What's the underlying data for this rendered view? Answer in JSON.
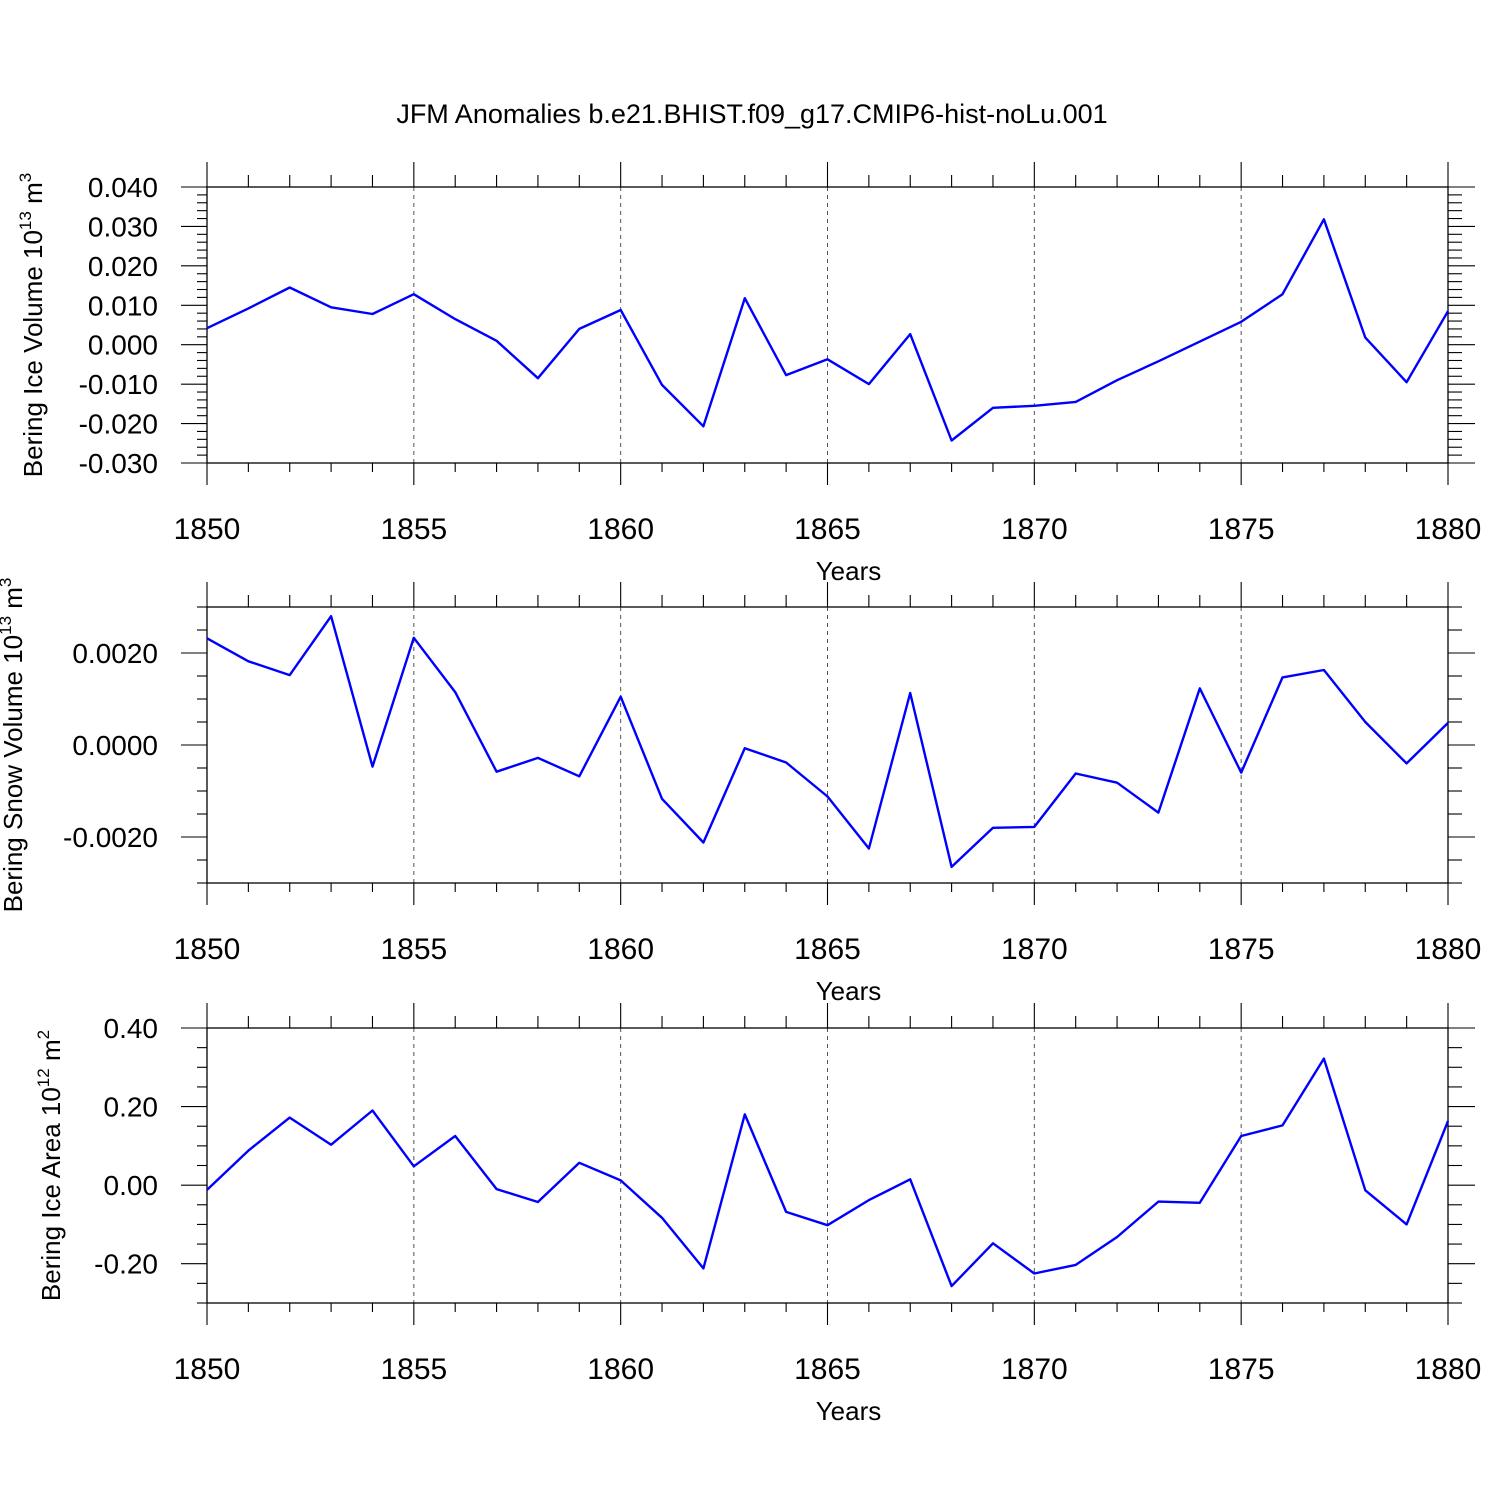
{
  "figure": {
    "title": "JFM Anomalies b.e21.BHIST.f09_g17.CMIP6-hist-noLu.001"
  },
  "colors": {
    "line": "#0000ff",
    "axis": "#000000",
    "grid": "#555555"
  },
  "chart_data": [
    {
      "type": "line",
      "ylabel_main": "Bering Ice Volume 10",
      "ylabel_sup": "13",
      "ylabel_unit": " m",
      "ylabel_unit_sup": "3",
      "xlabel": "Years",
      "xlim": [
        1850,
        1880
      ],
      "ylim": [
        -0.03,
        0.04
      ],
      "yticks": [
        -0.03,
        -0.02,
        -0.01,
        0.0,
        0.01,
        0.02,
        0.03,
        0.04
      ],
      "yticklabels": [
        "-0.030",
        "-0.020",
        "-0.010",
        "0.000",
        "0.010",
        "0.020",
        "0.030",
        "0.040"
      ],
      "yminor": 0.002,
      "xticks": [
        1850,
        1855,
        1860,
        1865,
        1870,
        1875,
        1880
      ],
      "xticklabels": [
        "1850",
        "1855",
        "1860",
        "1865",
        "1870",
        "1875",
        "1880"
      ],
      "grid": "vertical dashed at major x ticks",
      "series": [
        {
          "name": "Bering Ice Volume",
          "x": [
            1850,
            1851,
            1852,
            1853,
            1854,
            1855,
            1856,
            1857,
            1858,
            1859,
            1860,
            1861,
            1862,
            1863,
            1864,
            1865,
            1866,
            1867,
            1868,
            1869,
            1870,
            1871,
            1872,
            1873,
            1874,
            1875,
            1876,
            1877,
            1878,
            1879,
            1880
          ],
          "values": [
            0.0042,
            0.0092,
            0.0145,
            0.0095,
            0.0078,
            0.0128,
            0.0065,
            0.001,
            -0.0085,
            0.004,
            0.0088,
            -0.0102,
            -0.0207,
            0.0118,
            -0.0077,
            -0.0037,
            -0.01,
            0.0027,
            -0.0243,
            -0.016,
            -0.0155,
            -0.0145,
            -0.009,
            -0.0042,
            0.0008,
            0.0058,
            0.0128,
            0.0318,
            0.0018,
            -0.0095,
            0.0085
          ]
        }
      ]
    },
    {
      "type": "line",
      "ylabel_main": "Bering Snow Volume 10",
      "ylabel_sup": "13",
      "ylabel_unit": " m",
      "ylabel_unit_sup": "3",
      "xlabel": "Years",
      "xlim": [
        1850,
        1880
      ],
      "ylim": [
        -0.003,
        0.003
      ],
      "yticks": [
        -0.002,
        0.0,
        0.002
      ],
      "yticklabels": [
        "-0.0020",
        "0.0000",
        "0.0020"
      ],
      "yminor": 0.0005,
      "xticks": [
        1850,
        1855,
        1860,
        1865,
        1870,
        1875,
        1880
      ],
      "xticklabels": [
        "1850",
        "1855",
        "1860",
        "1865",
        "1870",
        "1875",
        "1880"
      ],
      "grid": "vertical dashed at major x ticks",
      "series": [
        {
          "name": "Bering Snow Volume",
          "x": [
            1850,
            1851,
            1852,
            1853,
            1854,
            1855,
            1856,
            1857,
            1858,
            1859,
            1860,
            1861,
            1862,
            1863,
            1864,
            1865,
            1866,
            1867,
            1868,
            1869,
            1870,
            1871,
            1872,
            1873,
            1874,
            1875,
            1876,
            1877,
            1878,
            1879,
            1880
          ],
          "values": [
            0.00232,
            0.00182,
            0.00152,
            0.0028,
            -0.00047,
            0.00233,
            0.00115,
            -0.00058,
            -0.00028,
            -0.00068,
            0.00105,
            -0.00117,
            -0.00212,
            -7e-05,
            -0.00038,
            -0.00112,
            -0.00225,
            0.00113,
            -0.00265,
            -0.0018,
            -0.00178,
            -0.00062,
            -0.00082,
            -0.00147,
            0.00123,
            -0.0006,
            0.00147,
            0.00163,
            0.0005,
            -0.0004,
            0.00048
          ]
        }
      ]
    },
    {
      "type": "line",
      "ylabel_main": "Bering Ice Area 10",
      "ylabel_sup": "12",
      "ylabel_unit": " m",
      "ylabel_unit_sup": "2",
      "xlabel": "Years",
      "xlim": [
        1850,
        1880
      ],
      "ylim": [
        -0.3,
        0.4
      ],
      "yticks": [
        -0.2,
        0.0,
        0.2,
        0.4
      ],
      "yticklabels": [
        "-0.20",
        "0.00",
        "0.20",
        "0.40"
      ],
      "yminor": 0.05,
      "xticks": [
        1850,
        1855,
        1860,
        1865,
        1870,
        1875,
        1880
      ],
      "xticklabels": [
        "1850",
        "1855",
        "1860",
        "1865",
        "1870",
        "1875",
        "1880"
      ],
      "grid": "vertical dashed at major x ticks",
      "series": [
        {
          "name": "Bering Ice Area",
          "x": [
            1850,
            1851,
            1852,
            1853,
            1854,
            1855,
            1856,
            1857,
            1858,
            1859,
            1860,
            1861,
            1862,
            1863,
            1864,
            1865,
            1866,
            1867,
            1868,
            1869,
            1870,
            1871,
            1872,
            1873,
            1874,
            1875,
            1876,
            1877,
            1878,
            1879,
            1880
          ],
          "values": [
            -0.012,
            0.088,
            0.172,
            0.103,
            0.19,
            0.048,
            0.125,
            -0.01,
            -0.043,
            0.057,
            0.012,
            -0.083,
            -0.212,
            0.18,
            -0.068,
            -0.102,
            -0.038,
            0.015,
            -0.257,
            -0.148,
            -0.225,
            -0.203,
            -0.132,
            -0.042,
            -0.045,
            0.125,
            0.152,
            0.322,
            -0.013,
            -0.1,
            0.163
          ]
        }
      ]
    }
  ]
}
